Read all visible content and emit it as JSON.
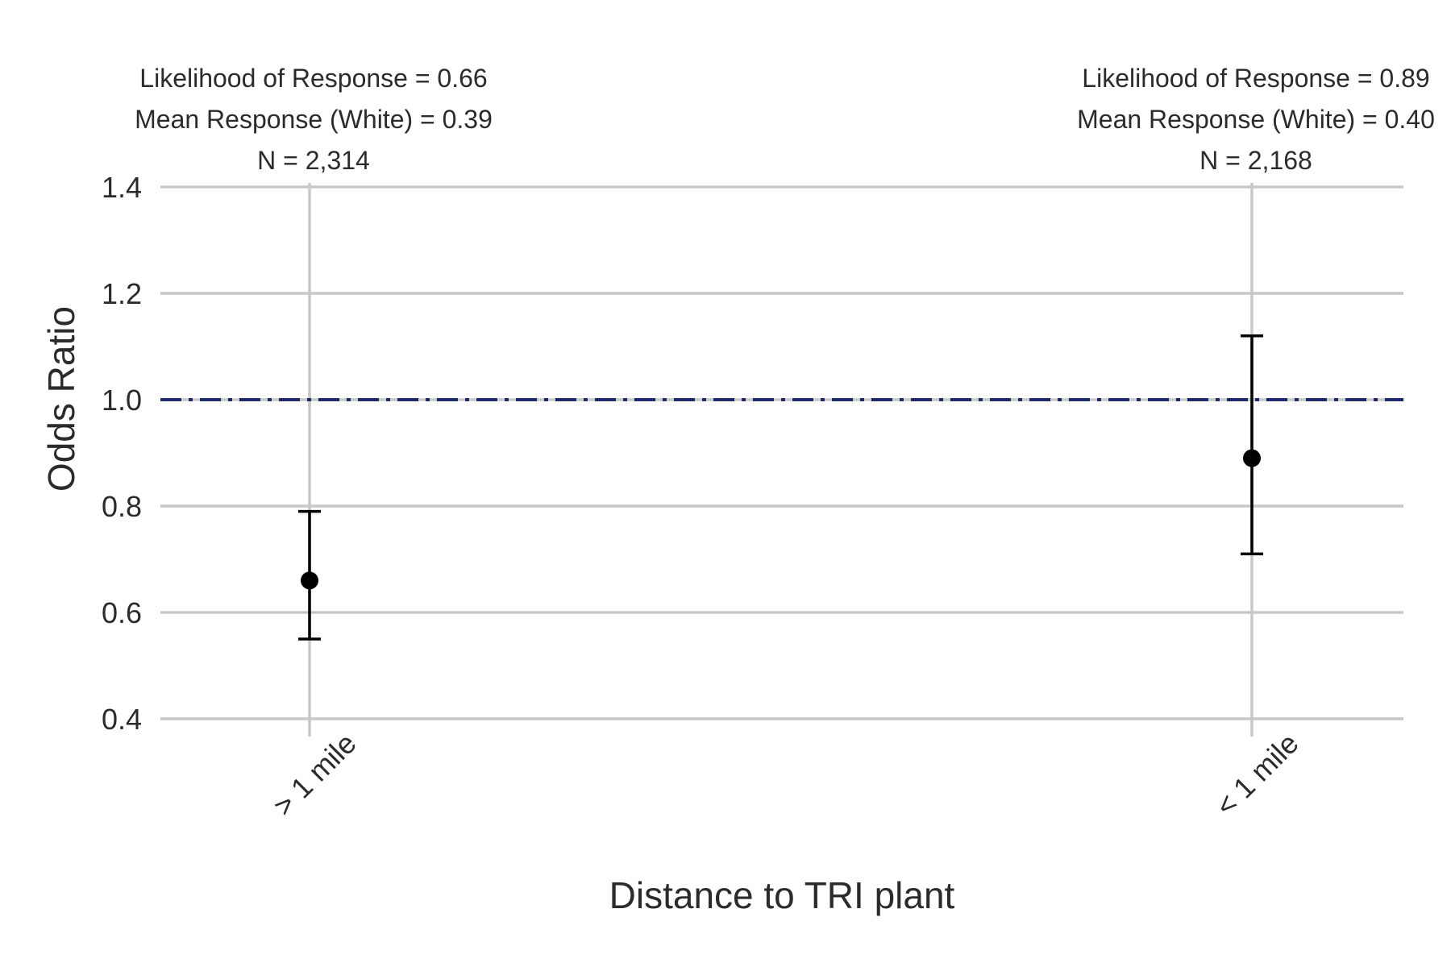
{
  "chart_data": {
    "type": "scatter",
    "xlabel": "Distance to TRI plant",
    "ylabel": "Odds Ratio",
    "ylim": [
      0.4,
      1.4
    ],
    "yticks": [
      0.4,
      0.6,
      0.8,
      1.0,
      1.2,
      1.4
    ],
    "ytick_labels": [
      "0.4",
      "0.6",
      "0.8",
      "1.0",
      "1.2",
      "1.4"
    ],
    "grid": true,
    "reference_line": {
      "y": 1.0,
      "style": "dash-dot",
      "color": "#1f2a6b"
    },
    "point_color": "#000000",
    "grid_color": "#c8c8c8",
    "categories": [
      "> 1 mile",
      "< 1 mile"
    ],
    "points": [
      {
        "category": "> 1 mile",
        "estimate": 0.66,
        "ci_low": 0.55,
        "ci_high": 0.79,
        "annotations": [
          "Likelihood of Response = 0.66",
          "Mean Response (White) = 0.39",
          "N = 2,314"
        ]
      },
      {
        "category": "< 1 mile",
        "estimate": 0.89,
        "ci_low": 0.71,
        "ci_high": 1.12,
        "annotations": [
          "Likelihood of Response = 0.89",
          "Mean Response (White) = 0.40",
          "N = 2,168"
        ]
      }
    ]
  }
}
